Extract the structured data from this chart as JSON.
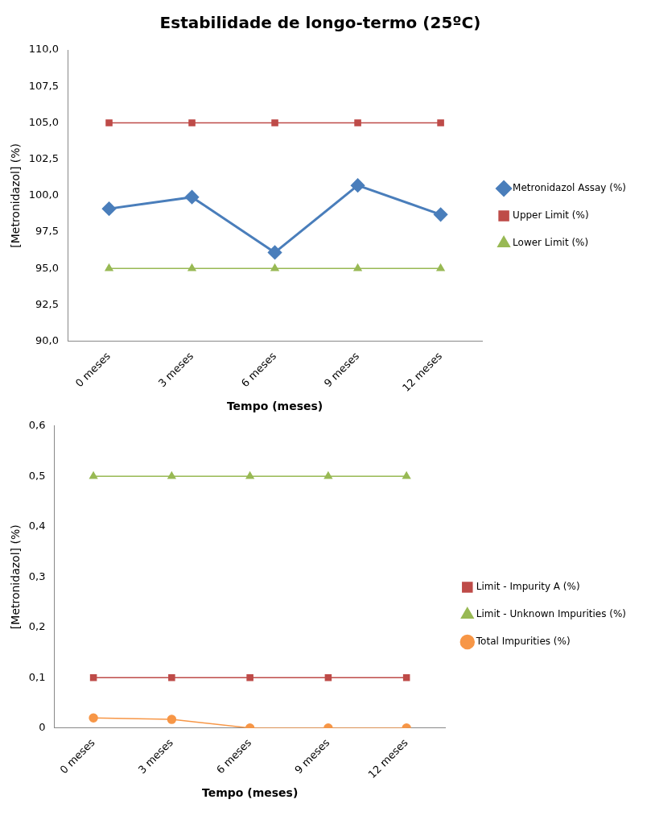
{
  "chart_data": [
    {
      "type": "line",
      "title": "Estabilidade de longo-termo (25ºC)",
      "xlabel": "Tempo (meses)",
      "ylabel": "[Metronidazol] (%)",
      "categories": [
        "0 meses",
        "3 meses",
        "6 meses",
        "9 meses",
        "12 meses"
      ],
      "series": [
        {
          "name": "Metronidazol Assay (%)",
          "color": "#4a7ebb",
          "marker": "diamond",
          "values": [
            99.1,
            99.9,
            96.1,
            100.7,
            98.7
          ]
        },
        {
          "name": "Upper Limit (%)",
          "color": "#be4b48",
          "marker": "square",
          "values": [
            105,
            105,
            105,
            105,
            105
          ]
        },
        {
          "name": "Lower Limit (%)",
          "color": "#98b954",
          "marker": "triangle",
          "values": [
            95,
            95,
            95,
            95,
            95
          ]
        }
      ],
      "ylim": [
        90,
        110
      ],
      "yticks": [
        {
          "value": 90,
          "label": "90,0"
        },
        {
          "value": 92.5,
          "label": "92,5"
        },
        {
          "value": 95,
          "label": "95,0"
        },
        {
          "value": 97.5,
          "label": "97,5"
        },
        {
          "value": 100,
          "label": "100,0"
        },
        {
          "value": 102.5,
          "label": "102,5"
        },
        {
          "value": 105,
          "label": "105,0"
        },
        {
          "value": 107.5,
          "label": "107,5"
        },
        {
          "value": 110,
          "label": "110,0"
        }
      ],
      "grid": false,
      "legend": "right"
    },
    {
      "type": "line",
      "xlabel": "Tempo (meses)",
      "ylabel": "[Metronidazol] (%)",
      "categories": [
        "0 meses",
        "3 meses",
        "6 meses",
        "9 meses",
        "12 meses"
      ],
      "series": [
        {
          "name": "Limit - Impurity A (%)",
          "color": "#be4b48",
          "marker": "square",
          "values": [
            0.1,
            0.1,
            0.1,
            0.1,
            0.1
          ]
        },
        {
          "name": "Limit - Unknown Impurities (%)",
          "color": "#98b954",
          "marker": "triangle",
          "values": [
            0.5,
            0.5,
            0.5,
            0.5,
            0.5
          ]
        },
        {
          "name": "Total Impurities (%)",
          "color": "#f79646",
          "marker": "circle",
          "values": [
            0.02,
            0.017,
            0,
            0,
            0
          ]
        }
      ],
      "ylim": [
        0,
        0.6
      ],
      "yticks": [
        0,
        {
          "value": 0.1,
          "label": "0,1"
        },
        {
          "value": 0.2,
          "label": "0,2"
        },
        {
          "value": 0.3,
          "label": "0,3"
        },
        {
          "value": 0.4,
          "label": "0,4"
        },
        {
          "value": 0.5,
          "label": "0,5"
        },
        {
          "value": 0.6,
          "label": "0,6"
        }
      ],
      "grid": false,
      "legend": "right"
    }
  ]
}
